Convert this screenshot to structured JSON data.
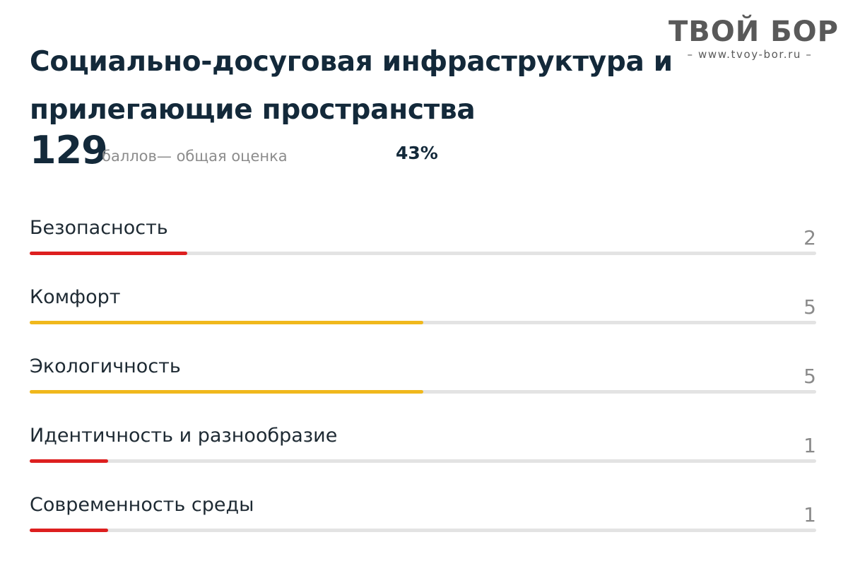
{
  "header": {
    "title_line1": "Социально-досуговая инфраструктура и",
    "title_line2": "прилегающие пространства"
  },
  "logo": {
    "name": "ТВОЙ БОР",
    "url": "– www.tvoy-bor.ru –"
  },
  "score": {
    "total": "129",
    "caption": "баллов— общая оценка",
    "percent": "43%"
  },
  "colors": {
    "low": "#dd1f1f",
    "mid": "#f0b81c",
    "track": "#e3e3e3"
  },
  "scale_max": 10,
  "metrics": [
    {
      "label": "Безопасность",
      "value": "2",
      "level": 2,
      "color": "#dd1f1f"
    },
    {
      "label": "Комфорт",
      "value": "5",
      "level": 5,
      "color": "#f0b81c"
    },
    {
      "label": "Экологичность",
      "value": "5",
      "level": 5,
      "color": "#f0b81c"
    },
    {
      "label": "Идентичность и разнообразие",
      "value": "1",
      "level": 1,
      "color": "#dd1f1f"
    },
    {
      "label": "Современность среды",
      "value": "1",
      "level": 1,
      "color": "#dd1f1f"
    }
  ]
}
